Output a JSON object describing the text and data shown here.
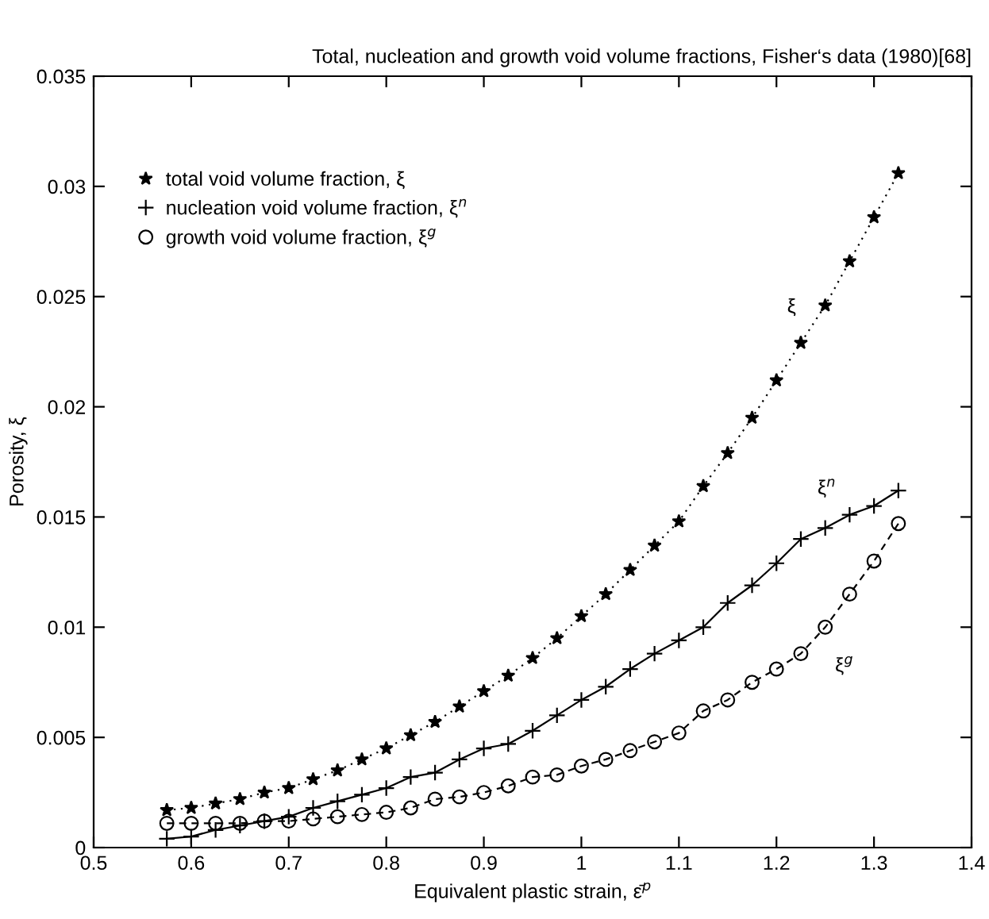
{
  "chart_data": {
    "type": "line",
    "title": "Total, nucleation and growth void volume fractions, Fisher‘s data (1980)[68]",
    "xlabel": "Equivalent plastic strain, ε̄$^{p}$",
    "ylabel": "Porosity, ξ",
    "x": [
      0.575,
      0.6,
      0.625,
      0.65,
      0.675,
      0.7,
      0.725,
      0.75,
      0.775,
      0.8,
      0.825,
      0.85,
      0.875,
      0.9,
      0.925,
      0.95,
      0.975,
      1,
      1.025,
      1.05,
      1.075,
      1.1,
      1.125,
      1.15,
      1.175,
      1.2,
      1.225,
      1.25,
      1.275,
      1.3,
      1.325
    ],
    "series": [
      {
        "name": "total void volume fraction, ξ",
        "color": "#000000",
        "marker": "star",
        "line_style": "dotted",
        "values": [
          0.0017,
          0.0018,
          0.002,
          0.0022,
          0.0025,
          0.0027,
          0.0031,
          0.0035,
          0.004,
          0.0045,
          0.0051,
          0.0057,
          0.0064,
          0.0071,
          0.0078,
          0.0086,
          0.0095,
          0.0105,
          0.0115,
          0.0126,
          0.0137,
          0.0148,
          0.0164,
          0.0179,
          0.0195,
          0.0212,
          0.0229,
          0.0246,
          0.0266,
          0.0286,
          0.0306
        ]
      },
      {
        "name": "nucleation void volume fraction, ξ$^{n}$",
        "color": "#000000",
        "marker": "cross",
        "line_style": "solid",
        "values": [
          0.0004,
          0.0005,
          0.0008,
          0.001,
          0.0012,
          0.0014,
          0.0018,
          0.0021,
          0.0024,
          0.0027,
          0.0032,
          0.0034,
          0.004,
          0.0045,
          0.0047,
          0.0053,
          0.006,
          0.0067,
          0.0073,
          0.0081,
          0.0088,
          0.0094,
          0.01,
          0.0111,
          0.0119,
          0.0129,
          0.014,
          0.0145,
          0.0151,
          0.0155,
          0.0162
        ]
      },
      {
        "name": "growth void volume fraction, ξ$^{g}$",
        "color": "#000000",
        "marker": "circle",
        "line_style": "dashed",
        "values": [
          0.0011,
          0.0011,
          0.0011,
          0.0011,
          0.0012,
          0.0012,
          0.0013,
          0.0014,
          0.0015,
          0.0016,
          0.0018,
          0.0022,
          0.0023,
          0.0025,
          0.0028,
          0.0032,
          0.0033,
          0.0037,
          0.004,
          0.0044,
          0.0048,
          0.0052,
          0.0062,
          0.0067,
          0.0075,
          0.0081,
          0.0088,
          0.01,
          0.0115,
          0.013,
          0.0147
        ]
      }
    ],
    "annotations": [
      "ξ",
      "ξ$^{n}$",
      "ξ$^{g}$"
    ],
    "xlim": [
      0.5,
      1.4
    ],
    "xticks": [
      0.5,
      0.6,
      0.7,
      0.8,
      0.9,
      1,
      1.1,
      1.2,
      1.3,
      1.4
    ],
    "ylim": [
      0,
      0.035
    ],
    "yticks": [
      0,
      0.005,
      0.01,
      0.015,
      0.02,
      0.025,
      0.03,
      0.035
    ],
    "grid": false,
    "legend": "top left"
  }
}
